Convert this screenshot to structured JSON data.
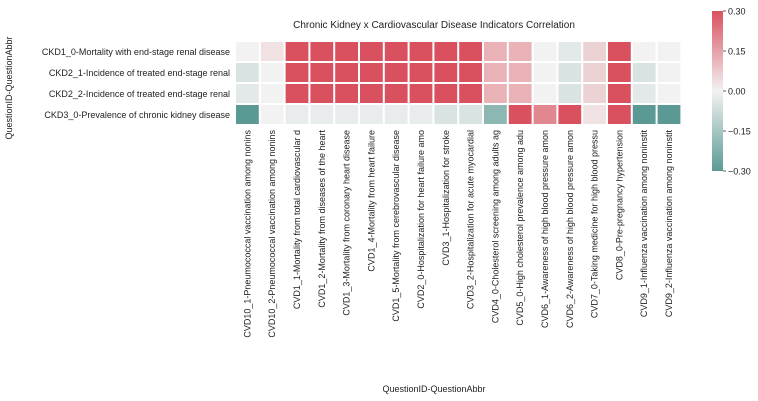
{
  "chart_data": {
    "type": "heatmap",
    "title": "Chronic Kidney x Cardiovascular Disease Indicators Correlation",
    "xlabel": "QuestionID-QuestionAbbr",
    "ylabel": "QuestionID-QuestionAbbr",
    "rows": [
      "CKD1_0-Mortality with end-stage renal disease",
      "CKD2_1-Incidence of treated end-stage renal",
      "CKD2_2-Incidence of treated end-stage renal",
      "CKD3_0-Prevalence of chronic kidney disease"
    ],
    "columns": [
      "CVD10_1-Pneumococcal vaccination among nonins",
      "CVD10_2-Pneumococcal vaccination among nonins",
      "CVD1_1-Mortality from total cardiovascular d",
      "CVD1_2-Mortality from diseases of the heart",
      "CVD1_3-Mortality from coronary heart disease",
      "CVD1_4-Mortality from heart failure",
      "CVD1_5-Mortality from cerebrovascular disease",
      "CVD2_0-Hospitalization for heart failure amo",
      "CVD3_1-Hospitalization for stroke",
      "CVD3_2-Hospitalization for acute myocardial",
      "CVD4_0-Cholesterol screening among adults ag",
      "CVD5_0-High cholesterol prevalence among adu",
      "CVD6_1-Awareness of high blood pressure amon",
      "CVD6_2-Awareness of high blood pressure amon",
      "CVD7_0-Taking medicine for high blood pressu",
      "CVD8_0-Pre-pregnancy hypertension",
      "CVD9_1-Influenza vaccination among noninstit",
      "CVD9_2-Influenza vaccination among noninstit"
    ],
    "values": [
      [
        0.0,
        0.03,
        0.3,
        0.3,
        0.3,
        0.3,
        0.3,
        0.3,
        0.3,
        0.3,
        0.12,
        0.12,
        0.0,
        -0.03,
        0.06,
        0.3,
        0.0,
        0.0
      ],
      [
        -0.05,
        0.0,
        0.3,
        0.3,
        0.3,
        0.3,
        0.3,
        0.3,
        0.3,
        0.3,
        0.12,
        0.12,
        0.0,
        -0.05,
        0.06,
        0.3,
        -0.05,
        0.0
      ],
      [
        -0.03,
        0.0,
        0.3,
        0.3,
        0.3,
        0.3,
        0.3,
        0.3,
        0.3,
        0.3,
        0.12,
        0.12,
        0.0,
        -0.05,
        0.06,
        0.3,
        -0.03,
        0.0
      ],
      [
        -0.3,
        0.0,
        -0.02,
        -0.02,
        -0.02,
        -0.02,
        -0.02,
        -0.02,
        -0.05,
        -0.05,
        -0.2,
        0.3,
        0.2,
        0.3,
        0.03,
        0.3,
        -0.3,
        -0.3
      ]
    ],
    "vmin": -0.3,
    "vmax": 0.3,
    "colorbar": {
      "ticks": [
        0.3,
        0.15,
        0.0,
        -0.15,
        -0.3
      ],
      "tick_labels": [
        "0.30",
        "0.15",
        "0.00",
        "−0.15",
        "−0.30"
      ]
    },
    "colors": {
      "low": "#5b9a94",
      "mid": "#f2f2f2",
      "high": "#d9515e",
      "grid": "#ffffff"
    },
    "grid": true,
    "legend": "colorbar-right"
  }
}
